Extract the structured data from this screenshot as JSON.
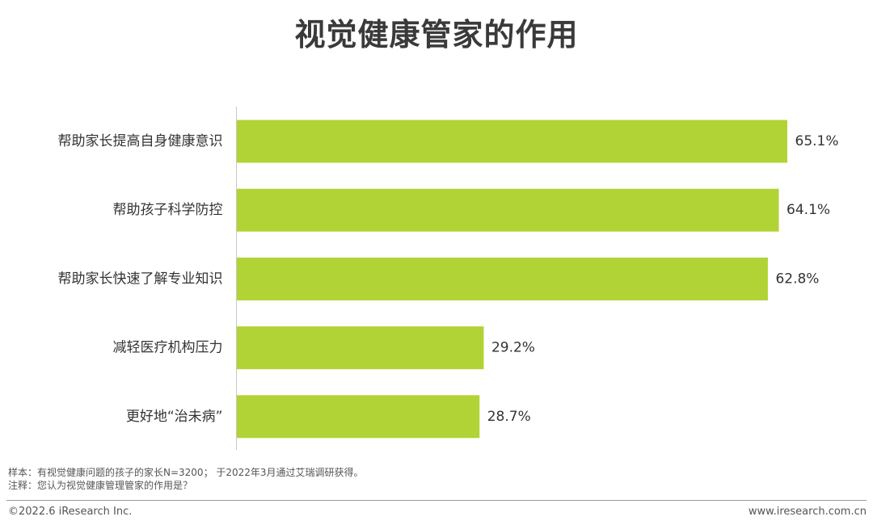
{
  "title": "视觉健康管家的作用",
  "chart_data": {
    "type": "bar",
    "orientation": "horizontal",
    "categories": [
      "帮助家长提高自身健康意识",
      "帮助孩子科学防控",
      "帮助家长快速了解专业知识",
      "减轻医疗机构压力",
      "更好地“治未病”"
    ],
    "values": [
      65.1,
      64.1,
      62.8,
      29.2,
      28.7
    ],
    "value_labels": [
      "65.1%",
      "64.1%",
      "62.8%",
      "29.2%",
      "28.7%"
    ],
    "bar_color": "#b1d335",
    "axis_color": "#c8c8c8",
    "xlim": [
      0,
      65.1
    ],
    "grid": false
  },
  "notes": {
    "sample": "样本：有视觉健康问题的孩子的家长N=3200； 于2022年3月通过艾瑞调研获得。",
    "remark": "注释：您认为视觉健康管理管家的作用是？"
  },
  "footer": {
    "copyright": "©2022.6 iResearch Inc.",
    "website": "www.iresearch.com.cn"
  }
}
